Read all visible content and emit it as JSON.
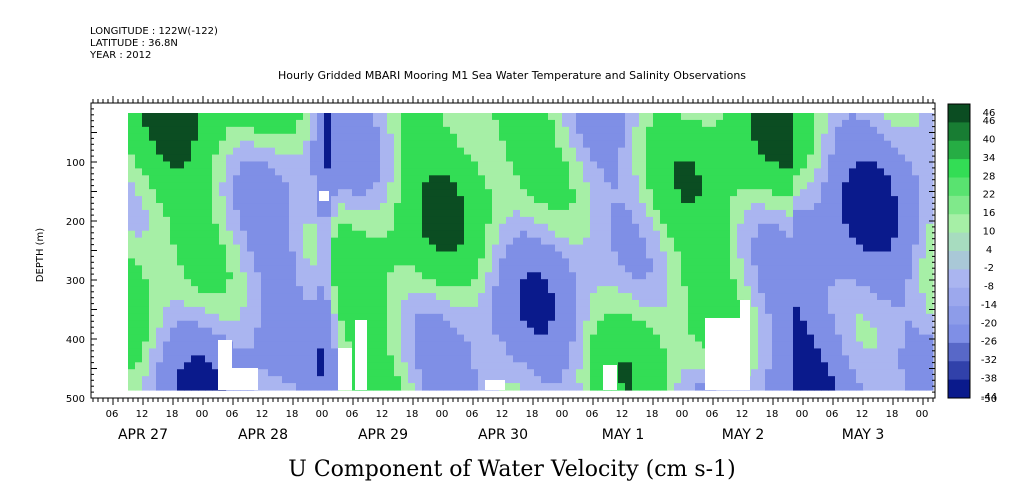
{
  "header": {
    "longitude": "LONGITUDE : 122W(-122)",
    "latitude": "LATITUDE : 36.8N",
    "year": "YEAR : 2012"
  },
  "chart_data": {
    "type": "heatmap",
    "title": "Hourly Gridded MBARI Mooring M1 Sea Water Temperature and Salinity Observations",
    "subtitle": "U Component of Water Velocity (cm s-1)",
    "ylabel": "DEPTH (m)",
    "ylim": [
      500,
      0
    ],
    "y_ticks": [
      100,
      200,
      300,
      400,
      500
    ],
    "x_hour_ticks": [
      "06",
      "12",
      "18",
      "00",
      "06",
      "12",
      "18",
      "00",
      "06",
      "12",
      "18",
      "00",
      "06",
      "12",
      "18",
      "00",
      "06",
      "12",
      "18",
      "00",
      "06",
      "12",
      "18",
      "00",
      "06",
      "12",
      "18",
      "00",
      "06",
      "12",
      "18",
      "00"
    ],
    "x_dates": [
      "APR 27",
      "APR 28",
      "APR 29",
      "APR 30",
      "MAY  1",
      "MAY  2",
      "MAY  3"
    ],
    "colorbar": {
      "levels": [
        "46",
        "40",
        "34",
        "28",
        "22",
        "16",
        "10",
        "4",
        "-2",
        "-8",
        "-14",
        "-20",
        "-26",
        "-32",
        "-38",
        "-44",
        "-50"
      ],
      "colors": {
        "strong_negative": "#0a1a8c",
        "moderate_negative": "#7f8fe6",
        "weak_negative": "#aab5f0",
        "weak_positive": "#a6efa6",
        "moderate_positive": "#33dd55",
        "strong_positive": "#0b4d22"
      }
    },
    "grid": false
  }
}
